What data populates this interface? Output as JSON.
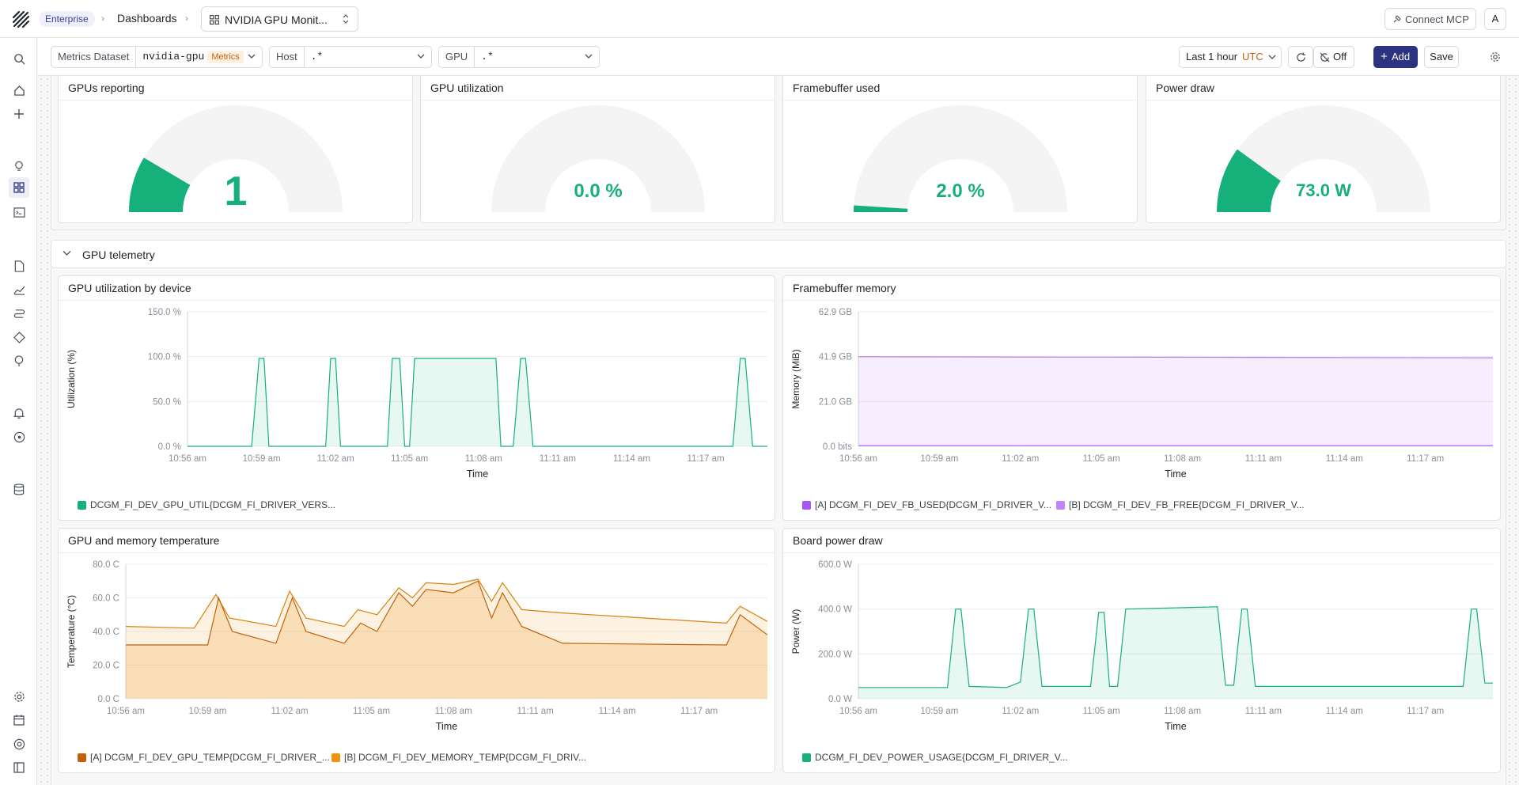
{
  "topbar": {
    "badge": "Enterprise",
    "crumb": "Dashboards",
    "dashboard_title": "NVIDIA GPU Monit...",
    "connect_mcp": "Connect MCP",
    "avatar": "A"
  },
  "toolbar": {
    "dataset_label": "Metrics Dataset",
    "dataset_value": "nvidia-gpu",
    "dataset_tag": "Metrics",
    "host_label": "Host",
    "host_value": ".*",
    "gpu_label": "GPU",
    "gpu_value": ".*",
    "time_range": "Last 1 hour",
    "timezone": "UTC",
    "refresh_off": "Off",
    "add": "Add",
    "save": "Save"
  },
  "colors": {
    "accent": "#2d3380",
    "green": "#16b07b",
    "purple_a": "#a855f7",
    "purple_b": "#c084fc",
    "orange": "#d9820f"
  },
  "gauges": [
    {
      "title": "GPUs reporting",
      "value_text": "1",
      "fraction": 0.17
    },
    {
      "title": "GPU utilization",
      "value_text": "0.0 %",
      "fraction": 0.0
    },
    {
      "title": "Framebuffer used",
      "value_text": "2.0 %",
      "fraction": 0.02
    },
    {
      "title": "Power draw",
      "value_text": "73.0 W",
      "fraction": 0.2
    }
  ],
  "row": {
    "title": "GPU telemetry"
  },
  "charts": {
    "xticks": [
      "10:56 am",
      "10:59 am",
      "11:02 am",
      "11:05 am",
      "11:08 am",
      "11:11 am",
      "11:14 am",
      "11:17 am"
    ],
    "xlabel": "Time",
    "util": {
      "title": "GPU utilization by device",
      "ylabel": "Utilization (%)",
      "yticks": [
        "150.0 %",
        "100.0 %",
        "50.0 %",
        "0.0 %"
      ],
      "legend": [
        "DCGM_FI_DEV_GPU_UTIL{DCGM_FI_DRIVER_VERS..."
      ]
    },
    "fb": {
      "title": "Framebuffer memory",
      "ylabel": "Memory (MiB)",
      "yticks": [
        "62.9 GB",
        "41.9 GB",
        "21.0 GB",
        "0.0 bits"
      ],
      "legend": [
        "[A] DCGM_FI_DEV_FB_USED{DCGM_FI_DRIVER_V...",
        "[B] DCGM_FI_DEV_FB_FREE{DCGM_FI_DRIVER_V..."
      ]
    },
    "temp": {
      "title": "GPU and memory temperature",
      "ylabel": "Temperature (°C)",
      "yticks": [
        "80.0 C",
        "60.0 C",
        "40.0 C",
        "20.0 C",
        "0.0 C"
      ],
      "legend": [
        "[A] DCGM_FI_DEV_GPU_TEMP{DCGM_FI_DRIVER_...",
        "[B] DCGM_FI_DEV_MEMORY_TEMP{DCGM_FI_DRIV..."
      ]
    },
    "power": {
      "title": "Board power draw",
      "ylabel": "Power (W)",
      "yticks": [
        "600.0 W",
        "400.0 W",
        "200.0 W",
        "0.0 W"
      ],
      "legend": [
        "DCGM_FI_DEV_POWER_USAGE{DCGM_FI_DRIVER_V..."
      ]
    }
  },
  "chart_data": [
    {
      "type": "line",
      "title": "GPU utilization by device",
      "xlabel": "Time",
      "ylabel": "Utilization (%)",
      "ylim": [
        0,
        150
      ],
      "series": [
        {
          "name": "DCGM_FI_DEV_GPU_UTIL{DCGM_FI_DRIVER_VERS...",
          "points": [
            [
              0,
              0
            ],
            [
              2.6,
              0
            ],
            [
              2.9,
              98
            ],
            [
              3.1,
              98
            ],
            [
              3.3,
              0
            ],
            [
              5.6,
              0
            ],
            [
              5.8,
              98
            ],
            [
              6.0,
              98
            ],
            [
              6.2,
              0
            ],
            [
              8.1,
              0
            ],
            [
              8.3,
              98
            ],
            [
              8.6,
              98
            ],
            [
              8.8,
              0
            ],
            [
              9.0,
              0
            ],
            [
              9.2,
              98
            ],
            [
              12.5,
              98
            ],
            [
              12.7,
              0
            ],
            [
              13.2,
              0
            ],
            [
              13.5,
              98
            ],
            [
              13.7,
              98
            ],
            [
              14.0,
              0
            ],
            [
              22.1,
              0
            ],
            [
              22.4,
              98
            ],
            [
              22.6,
              98
            ],
            [
              22.9,
              0
            ],
            [
              23.5,
              0
            ]
          ]
        }
      ]
    },
    {
      "type": "area",
      "title": "Framebuffer memory",
      "xlabel": "Time",
      "ylabel": "Memory (MiB)",
      "ylim": [
        0,
        62.9
      ],
      "series": [
        {
          "name": "[A] DCGM_FI_DEV_FB_USED{DCGM_FI_DRIVER_V...",
          "points": [
            [
              0,
              0.3
            ],
            [
              23.5,
              0.3
            ]
          ]
        },
        {
          "name": "[B] DCGM_FI_DEV_FB_FREE{DCGM_FI_DRIVER_V...",
          "points": [
            [
              0,
              41.9
            ],
            [
              23.5,
              41.4
            ]
          ]
        }
      ]
    },
    {
      "type": "area",
      "title": "GPU and memory temperature",
      "xlabel": "Time",
      "ylabel": "Temperature (°C)",
      "ylim": [
        0,
        80
      ],
      "series": [
        {
          "name": "[A] DCGM_FI_DEV_GPU_TEMP{DCGM_FI_DRIVER_...",
          "points": [
            [
              0,
              43
            ],
            [
              2.5,
              42
            ],
            [
              3.3,
              62
            ],
            [
              3.8,
              48
            ],
            [
              5.5,
              43
            ],
            [
              6.0,
              64
            ],
            [
              6.6,
              48
            ],
            [
              8.0,
              43
            ],
            [
              8.5,
              53
            ],
            [
              9.2,
              50
            ],
            [
              10.0,
              66
            ],
            [
              10.5,
              60
            ],
            [
              11.0,
              69
            ],
            [
              12.0,
              68
            ],
            [
              12.9,
              71
            ],
            [
              13.4,
              58
            ],
            [
              13.8,
              69
            ],
            [
              14.5,
              53
            ],
            [
              16.0,
              51
            ],
            [
              22.0,
              45
            ],
            [
              22.5,
              55
            ],
            [
              23.5,
              46
            ]
          ]
        },
        {
          "name": "[B] DCGM_FI_DEV_MEMORY_TEMP{DCGM_FI_DRIV...",
          "points": [
            [
              0,
              32
            ],
            [
              3.0,
              32
            ],
            [
              3.4,
              60
            ],
            [
              3.9,
              40
            ],
            [
              5.5,
              33
            ],
            [
              6.1,
              60
            ],
            [
              6.6,
              40
            ],
            [
              8.0,
              33
            ],
            [
              8.6,
              45
            ],
            [
              9.2,
              40
            ],
            [
              10.0,
              63
            ],
            [
              10.5,
              55
            ],
            [
              11.0,
              65
            ],
            [
              12.0,
              63
            ],
            [
              12.9,
              70
            ],
            [
              13.4,
              48
            ],
            [
              13.8,
              63
            ],
            [
              14.5,
              43
            ],
            [
              16.0,
              33
            ],
            [
              22.0,
              32
            ],
            [
              22.5,
              50
            ],
            [
              23.5,
              38
            ]
          ]
        }
      ]
    },
    {
      "type": "line",
      "title": "Board power draw",
      "xlabel": "Time",
      "ylabel": "Power (W)",
      "ylim": [
        0,
        600
      ],
      "series": [
        {
          "name": "DCGM_FI_DEV_POWER_USAGE{DCGM_FI_DRIVER_V...",
          "points": [
            [
              0,
              50
            ],
            [
              3.3,
              50
            ],
            [
              3.6,
              400
            ],
            [
              3.8,
              400
            ],
            [
              4.1,
              55
            ],
            [
              5.5,
              50
            ],
            [
              6.0,
              75
            ],
            [
              6.3,
              400
            ],
            [
              6.5,
              400
            ],
            [
              6.8,
              55
            ],
            [
              8.6,
              55
            ],
            [
              8.9,
              385
            ],
            [
              9.1,
              385
            ],
            [
              9.3,
              55
            ],
            [
              9.6,
              55
            ],
            [
              9.9,
              400
            ],
            [
              13.3,
              410
            ],
            [
              13.6,
              60
            ],
            [
              13.9,
              60
            ],
            [
              14.2,
              400
            ],
            [
              14.4,
              400
            ],
            [
              14.7,
              55
            ],
            [
              22.4,
              55
            ],
            [
              22.7,
              400
            ],
            [
              22.9,
              400
            ],
            [
              23.2,
              70
            ],
            [
              23.5,
              70
            ]
          ]
        }
      ]
    }
  ]
}
